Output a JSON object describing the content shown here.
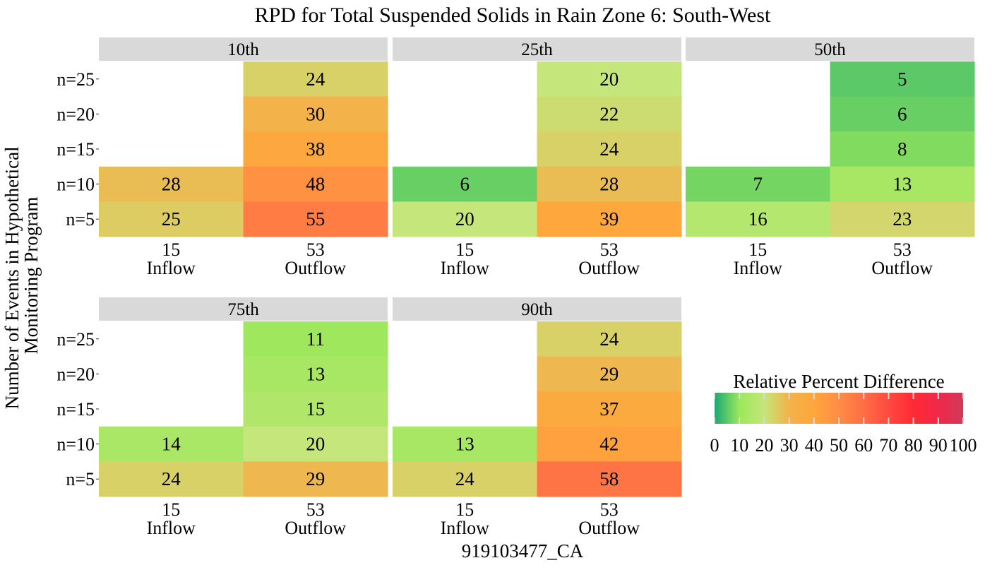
{
  "chart_data": {
    "type": "heatmap",
    "title": "RPD for Total Suspended Solids in Rain Zone 6: South-West",
    "xlabel": "919103477_CA",
    "ylabel_lines": [
      "Number of Events in Hypothetical",
      "Monitoring Program"
    ],
    "x_categories": [
      {
        "count": "15",
        "name": "Inflow"
      },
      {
        "count": "53",
        "name": "Outflow"
      }
    ],
    "y_categories": [
      "n=25",
      "n=20",
      "n=15",
      "n=10",
      "n=5"
    ],
    "facets": [
      {
        "label": "10th",
        "values": {
          "Inflow": [
            null,
            null,
            null,
            28,
            25
          ],
          "Outflow": [
            24,
            30,
            38,
            48,
            55
          ]
        }
      },
      {
        "label": "25th",
        "values": {
          "Inflow": [
            null,
            null,
            null,
            6,
            20
          ],
          "Outflow": [
            20,
            22,
            24,
            28,
            39
          ]
        }
      },
      {
        "label": "50th",
        "values": {
          "Inflow": [
            null,
            null,
            null,
            7,
            16
          ],
          "Outflow": [
            5,
            6,
            8,
            13,
            23
          ]
        }
      },
      {
        "label": "75th",
        "values": {
          "Inflow": [
            null,
            null,
            null,
            14,
            24
          ],
          "Outflow": [
            11,
            13,
            15,
            20,
            29
          ]
        }
      },
      {
        "label": "90th",
        "values": {
          "Inflow": [
            null,
            null,
            null,
            13,
            24
          ],
          "Outflow": [
            24,
            29,
            37,
            42,
            58
          ]
        }
      }
    ],
    "legend": {
      "title": "Relative Percent Difference",
      "min": 0,
      "max": 100,
      "ticks": [
        0,
        10,
        20,
        30,
        40,
        50,
        60,
        70,
        80,
        90,
        100
      ],
      "placement": "right",
      "color_stops": [
        {
          "value": 0,
          "color": "#1aa974"
        },
        {
          "value": 10,
          "color": "#9be85a"
        },
        {
          "value": 20,
          "color": "#c4e67a"
        },
        {
          "value": 30,
          "color": "#f3b24a"
        },
        {
          "value": 40,
          "color": "#ffa63c"
        },
        {
          "value": 50,
          "color": "#ff8c45"
        },
        {
          "value": 60,
          "color": "#ff6e45"
        },
        {
          "value": 70,
          "color": "#ff4a40"
        },
        {
          "value": 80,
          "color": "#ff2a35"
        },
        {
          "value": 90,
          "color": "#f0284a"
        },
        {
          "value": 100,
          "color": "#cf3a5a"
        }
      ]
    },
    "strip_color": "#d9d9d9"
  }
}
